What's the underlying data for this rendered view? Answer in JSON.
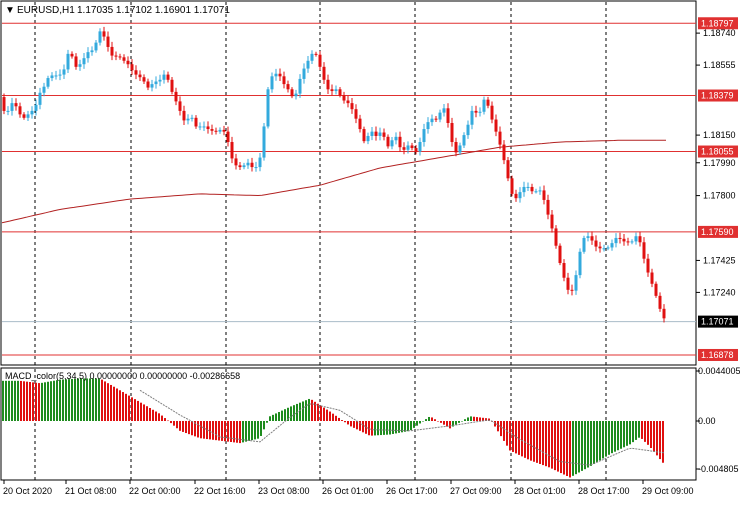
{
  "header": {
    "menu_arrow": "▼",
    "symbol": "EURUSD,H1",
    "ohlc": "1.17035 1.17102 1.16901 1.17071"
  },
  "indicator": {
    "title": "MACD_color(5,34,5) 0.00000000 0.00000000 -0.00286658",
    "scale_labels": [
      "0.0044005",
      "0.00",
      "-0.004805"
    ]
  },
  "colors": {
    "bull": "#33aadd",
    "bear": "#e01010",
    "level": "#e03030",
    "ma": "#b22222",
    "macd_up": "#1e8c1e",
    "macd_down": "#e01010",
    "grid": "#000000",
    "current_line": "#a9bcc8",
    "current_label": "#000000"
  },
  "price_axis": {
    "tick_labels": [
      "1.18740",
      "1.18555",
      "1.18150",
      "1.17990",
      "1.17800",
      "1.17425",
      "1.17240"
    ],
    "level_labels": [
      "1.18797",
      "1.18379",
      "1.18055",
      "1.17590",
      "1.16878"
    ],
    "current_price": "1.17071"
  },
  "time_axis": {
    "labels": [
      "20 Oct 2020",
      "21 Oct 08:00",
      "22 Oct 00:00",
      "22 Oct 16:00",
      "23 Oct 08:00",
      "26 Oct 01:00",
      "26 Oct 17:00",
      "27 Oct 09:00",
      "28 Oct 01:00",
      "28 Oct 17:00",
      "29 Oct 09:00"
    ]
  },
  "chart_data": {
    "type": "candlestick",
    "price_range": [
      1.1682,
      1.1892
    ],
    "levels": [
      1.18797,
      1.18379,
      1.18055,
      1.1759,
      1.16878
    ],
    "current_price": 1.17071,
    "close_path": [
      [
        0,
        1.1837
      ],
      [
        6,
        1.1825
      ],
      [
        10,
        1.1833
      ],
      [
        14,
        1.1834
      ],
      [
        20,
        1.1827
      ],
      [
        26,
        1.1824
      ],
      [
        30,
        1.183
      ],
      [
        34,
        1.1828
      ],
      [
        38,
        1.1837
      ],
      [
        42,
        1.1842
      ],
      [
        46,
        1.1844
      ],
      [
        50,
        1.1852
      ],
      [
        54,
        1.1847
      ],
      [
        58,
        1.1852
      ],
      [
        62,
        1.1848
      ],
      [
        66,
        1.1858
      ],
      [
        70,
        1.1866
      ],
      [
        74,
        1.1855
      ],
      [
        78,
        1.1854
      ],
      [
        82,
        1.1858
      ],
      [
        86,
        1.1861
      ],
      [
        90,
        1.1865
      ],
      [
        94,
        1.1863
      ],
      [
        98,
        1.1874
      ],
      [
        102,
        1.1876
      ],
      [
        106,
        1.1868
      ],
      [
        110,
        1.1864
      ],
      [
        114,
        1.1858
      ],
      [
        118,
        1.1863
      ],
      [
        122,
        1.1857
      ],
      [
        126,
        1.1859
      ],
      [
        130,
        1.1853
      ],
      [
        134,
        1.1852
      ],
      [
        138,
        1.1848
      ],
      [
        142,
        1.1849
      ],
      [
        146,
        1.1843
      ],
      [
        150,
        1.1842
      ],
      [
        154,
        1.1847
      ],
      [
        158,
        1.1845
      ],
      [
        162,
        1.1849
      ],
      [
        166,
        1.1851
      ],
      [
        170,
        1.1843
      ],
      [
        174,
        1.1837
      ],
      [
        178,
        1.1832
      ],
      [
        182,
        1.1826
      ],
      [
        186,
        1.1821
      ],
      [
        190,
        1.1828
      ],
      [
        194,
        1.1822
      ],
      [
        198,
        1.1818
      ],
      [
        202,
        1.1822
      ],
      [
        206,
        1.1818
      ],
      [
        210,
        1.1819
      ],
      [
        214,
        1.1816
      ],
      [
        218,
        1.1818
      ],
      [
        222,
        1.1818
      ],
      [
        226,
        1.1816
      ],
      [
        230,
        1.1806
      ],
      [
        234,
        1.1797
      ],
      [
        238,
        1.1798
      ],
      [
        242,
        1.1795
      ],
      [
        246,
        1.18
      ],
      [
        250,
        1.1798
      ],
      [
        254,
        1.1795
      ],
      [
        258,
        1.1798
      ],
      [
        262,
        1.1806
      ],
      [
        266,
        1.1834
      ],
      [
        270,
        1.1849
      ],
      [
        274,
        1.1849
      ],
      [
        278,
        1.1852
      ],
      [
        282,
        1.1846
      ],
      [
        286,
        1.1843
      ],
      [
        290,
        1.184
      ],
      [
        294,
        1.1835
      ],
      [
        298,
        1.1843
      ],
      [
        302,
        1.1852
      ],
      [
        306,
        1.1855
      ],
      [
        310,
        1.1861
      ],
      [
        314,
        1.1863
      ],
      [
        318,
        1.186
      ],
      [
        322,
        1.1849
      ],
      [
        326,
        1.1845
      ],
      [
        330,
        1.1838
      ],
      [
        334,
        1.1843
      ],
      [
        338,
        1.184
      ],
      [
        342,
        1.1836
      ],
      [
        346,
        1.1834
      ],
      [
        350,
        1.1833
      ],
      [
        354,
        1.1827
      ],
      [
        358,
        1.1822
      ],
      [
        362,
        1.1815
      ],
      [
        366,
        1.1808
      ],
      [
        370,
        1.1821
      ],
      [
        374,
        1.1813
      ],
      [
        378,
        1.1816
      ],
      [
        382,
        1.1817
      ],
      [
        386,
        1.1811
      ],
      [
        390,
        1.1806
      ],
      [
        394,
        1.1818
      ],
      [
        398,
        1.181
      ],
      [
        402,
        1.1806
      ],
      [
        406,
        1.1807
      ],
      [
        410,
        1.1811
      ],
      [
        414,
        1.1804
      ],
      [
        418,
        1.1807
      ],
      [
        422,
        1.1815
      ],
      [
        426,
        1.1822
      ],
      [
        430,
        1.1823
      ],
      [
        434,
        1.1826
      ],
      [
        438,
        1.1822
      ],
      [
        442,
        1.1834
      ],
      [
        446,
        1.1827
      ],
      [
        450,
        1.1817
      ],
      [
        454,
        1.1805
      ],
      [
        458,
        1.1805
      ],
      [
        462,
        1.1813
      ],
      [
        466,
        1.1817
      ],
      [
        470,
        1.1825
      ],
      [
        474,
        1.1833
      ],
      [
        478,
        1.1823
      ],
      [
        482,
        1.1834
      ],
      [
        486,
        1.1837
      ],
      [
        490,
        1.1827
      ],
      [
        494,
        1.1821
      ],
      [
        498,
        1.1813
      ],
      [
        502,
        1.1806
      ],
      [
        506,
        1.1795
      ],
      [
        510,
        1.1785
      ],
      [
        514,
        1.1777
      ],
      [
        518,
        1.178
      ],
      [
        522,
        1.1784
      ],
      [
        526,
        1.1786
      ],
      [
        530,
        1.1784
      ],
      [
        534,
        1.1781
      ],
      [
        538,
        1.1784
      ],
      [
        542,
        1.1782
      ],
      [
        546,
        1.1773
      ],
      [
        550,
        1.1765
      ],
      [
        554,
        1.1757
      ],
      [
        558,
        1.1745
      ],
      [
        562,
        1.1737
      ],
      [
        566,
        1.1728
      ],
      [
        570,
        1.1723
      ],
      [
        574,
        1.1727
      ],
      [
        578,
        1.1741
      ],
      [
        582,
        1.1754
      ],
      [
        586,
        1.1757
      ],
      [
        590,
        1.1756
      ],
      [
        594,
        1.1752
      ],
      [
        598,
        1.1749
      ],
      [
        602,
        1.175
      ],
      [
        606,
        1.1749
      ],
      [
        610,
        1.1751
      ],
      [
        614,
        1.1754
      ],
      [
        618,
        1.1757
      ],
      [
        622,
        1.1753
      ],
      [
        626,
        1.1754
      ],
      [
        630,
        1.1752
      ],
      [
        634,
        1.1755
      ],
      [
        638,
        1.1758
      ],
      [
        642,
        1.1748
      ],
      [
        646,
        1.1739
      ],
      [
        650,
        1.1732
      ],
      [
        654,
        1.1726
      ],
      [
        658,
        1.1718
      ],
      [
        662,
        1.1711
      ],
      [
        666,
        1.1707
      ]
    ],
    "moving_average": [
      [
        0,
        1.1764
      ],
      [
        60,
        1.1772
      ],
      [
        130,
        1.1778
      ],
      [
        200,
        1.1781
      ],
      [
        260,
        1.178
      ],
      [
        320,
        1.1786
      ],
      [
        380,
        1.1796
      ],
      [
        440,
        1.1802
      ],
      [
        500,
        1.1808
      ],
      [
        560,
        1.1811
      ],
      [
        620,
        1.1812
      ],
      [
        667,
        1.1812
      ]
    ],
    "macd": {
      "range": [
        -0.004805,
        0.0044005
      ],
      "histogram": [
        [
          0,
          0.0034
        ],
        [
          20,
          0.0034
        ],
        [
          40,
          0.0032
        ],
        [
          60,
          0.0035
        ],
        [
          80,
          0.0036
        ],
        [
          100,
          0.0036
        ],
        [
          120,
          0.0026
        ],
        [
          140,
          0.0016
        ],
        [
          160,
          0.0006
        ],
        [
          180,
          -0.0008
        ],
        [
          200,
          -0.0014
        ],
        [
          220,
          -0.0016
        ],
        [
          240,
          -0.0018
        ],
        [
          260,
          -0.0014
        ],
        [
          270,
          0.0004
        ],
        [
          290,
          0.0012
        ],
        [
          310,
          0.0019
        ],
        [
          330,
          0.0008
        ],
        [
          350,
          -0.0004
        ],
        [
          370,
          -0.0012
        ],
        [
          390,
          -0.0011
        ],
        [
          410,
          -0.0008
        ],
        [
          430,
          0.0004
        ],
        [
          450,
          -0.0006
        ],
        [
          470,
          0.0004
        ],
        [
          490,
          0.0002
        ],
        [
          510,
          -0.0024
        ],
        [
          530,
          -0.0032
        ],
        [
          550,
          -0.0038
        ],
        [
          570,
          -0.0046
        ],
        [
          590,
          -0.0037
        ],
        [
          610,
          -0.0027
        ],
        [
          630,
          -0.0019
        ],
        [
          640,
          -0.0013
        ],
        [
          650,
          -0.0021
        ],
        [
          665,
          -0.0036
        ]
      ],
      "signal": [
        [
          140,
          0.0026
        ],
        [
          180,
          0.0005
        ],
        [
          220,
          -0.0013
        ],
        [
          260,
          -0.0017
        ],
        [
          290,
          0.0003
        ],
        [
          310,
          0.0015
        ],
        [
          340,
          0.0009
        ],
        [
          370,
          -0.0007
        ],
        [
          410,
          -0.0008
        ],
        [
          450,
          -0.0004
        ],
        [
          490,
          0.0001
        ],
        [
          520,
          -0.0015
        ],
        [
          560,
          -0.0033
        ],
        [
          590,
          -0.0036
        ],
        [
          630,
          -0.0022
        ],
        [
          665,
          -0.0026
        ]
      ]
    }
  }
}
